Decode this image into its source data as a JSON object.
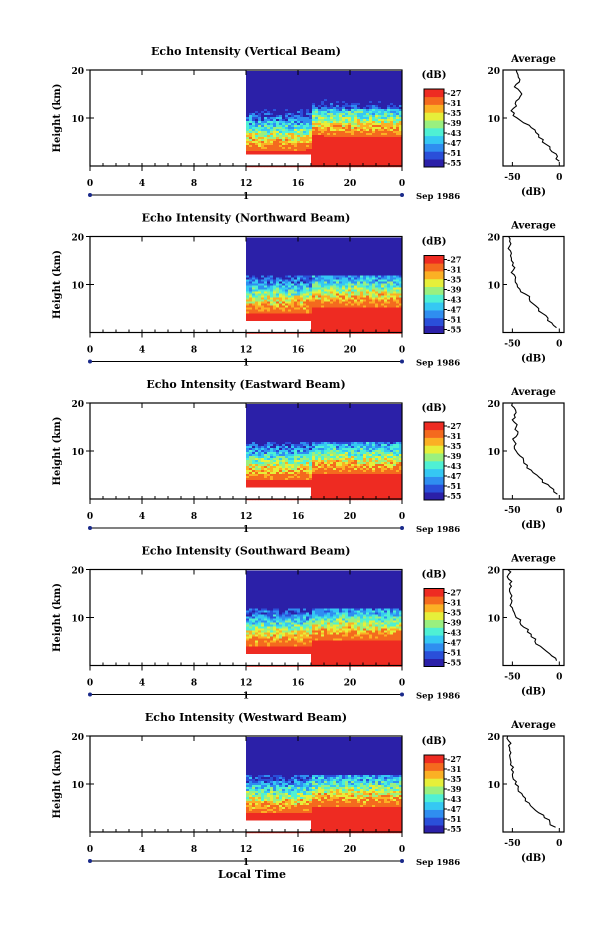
{
  "figure": {
    "xaxis_label": "Local Time",
    "height_label": "Height (km)",
    "colorbar_title": "(dB)",
    "colorbar_ticks": [
      "-27",
      "-31",
      "-35",
      "-39",
      "-43",
      "-47",
      "-51",
      "-55"
    ],
    "colorbar_colors": [
      "#2b20a8",
      "#2a4fd9",
      "#2f8ef0",
      "#35c8f3",
      "#4ff0d4",
      "#9af07f",
      "#e6ef3a",
      "#fbb024",
      "#f46a1e",
      "#ee2b22"
    ],
    "x_ticks": [
      "0",
      "4",
      "8",
      "12",
      "16",
      "20",
      "0"
    ],
    "day_marker": "1",
    "date_label": "Sep 1986",
    "y_ticks": [
      "20",
      "10"
    ],
    "avg_title": "Average",
    "avg_xlabel": "(dB)",
    "avg_x_ticks": [
      "-50",
      "0"
    ],
    "avg_y_ticks": [
      "20",
      "10"
    ]
  },
  "chart_data": [
    {
      "type": "heatmap",
      "title": "Echo Intensity (Vertical Beam)",
      "xlabel": "",
      "ylabel": "Height (km)",
      "xlim": [
        0,
        24
      ],
      "ylim": [
        0,
        20
      ],
      "data_start_hour": 12,
      "colorbar_range_db": [
        -55,
        -27
      ],
      "average_profile": {
        "title": "Average",
        "xlabel": "(dB)",
        "xlim": [
          -60,
          5
        ],
        "ylim": [
          0,
          20
        ],
        "height_km": [
          1,
          2,
          3,
          4,
          5,
          6,
          7,
          8,
          9,
          10,
          11,
          12,
          13,
          14,
          15,
          16,
          17,
          18,
          19,
          20
        ],
        "db": [
          0,
          -2,
          -8,
          -10,
          -18,
          -22,
          -25,
          -30,
          -38,
          -45,
          -48,
          -49,
          -47,
          -43,
          -40,
          -44,
          -46,
          -42,
          -44,
          -46
        ]
      }
    },
    {
      "type": "heatmap",
      "title": "Echo Intensity (Northward Beam)",
      "xlabel": "",
      "ylabel": "Height (km)",
      "xlim": [
        0,
        24
      ],
      "ylim": [
        0,
        20
      ],
      "data_start_hour": 12,
      "colorbar_range_db": [
        -55,
        -27
      ],
      "average_profile": {
        "title": "Average",
        "xlabel": "(dB)",
        "xlim": [
          -60,
          5
        ],
        "ylim": [
          0,
          20
        ],
        "height_km": [
          1,
          2,
          3,
          4,
          5,
          6,
          7,
          8,
          9,
          10,
          11,
          12,
          13,
          14,
          15,
          16,
          17,
          18,
          19,
          20
        ],
        "db": [
          -3,
          -8,
          -12,
          -18,
          -22,
          -28,
          -32,
          -36,
          -42,
          -45,
          -47,
          -48,
          -49,
          -50,
          -51,
          -52,
          -52,
          -53,
          -53,
          -54
        ]
      }
    },
    {
      "type": "heatmap",
      "title": "Echo Intensity (Eastward Beam)",
      "xlabel": "",
      "ylabel": "Height (km)",
      "xlim": [
        0,
        24
      ],
      "ylim": [
        0,
        20
      ],
      "data_start_hour": 12,
      "colorbar_range_db": [
        -55,
        -27
      ],
      "average_profile": {
        "title": "Average",
        "xlabel": "(dB)",
        "xlim": [
          -60,
          5
        ],
        "ylim": [
          0,
          20
        ],
        "height_km": [
          1,
          2,
          3,
          4,
          5,
          6,
          7,
          8,
          9,
          10,
          11,
          12,
          13,
          14,
          15,
          16,
          17,
          18,
          19,
          20
        ],
        "db": [
          -2,
          -6,
          -12,
          -18,
          -24,
          -30,
          -34,
          -38,
          -42,
          -46,
          -48,
          -48,
          -46,
          -44,
          -46,
          -48,
          -47,
          -46,
          -48,
          -50
        ]
      }
    },
    {
      "type": "heatmap",
      "title": "Echo Intensity (Southward Beam)",
      "xlabel": "",
      "ylabel": "Height (km)",
      "xlim": [
        0,
        24
      ],
      "ylim": [
        0,
        20
      ],
      "data_start_hour": 12,
      "colorbar_range_db": [
        -55,
        -27
      ],
      "average_profile": {
        "title": "Average",
        "xlabel": "(dB)",
        "xlim": [
          -60,
          5
        ],
        "ylim": [
          0,
          20
        ],
        "height_km": [
          1,
          2,
          3,
          4,
          5,
          6,
          7,
          8,
          9,
          10,
          11,
          12,
          13,
          14,
          15,
          16,
          17,
          18,
          19,
          20
        ],
        "db": [
          -3,
          -8,
          -14,
          -20,
          -26,
          -30,
          -34,
          -38,
          -42,
          -46,
          -48,
          -50,
          -51,
          -52,
          -52,
          -53,
          -53,
          -54,
          -54,
          -55
        ]
      }
    },
    {
      "type": "heatmap",
      "title": "Echo Intensity (Westward Beam)",
      "xlabel": "Local Time",
      "ylabel": "Height (km)",
      "xlim": [
        0,
        24
      ],
      "ylim": [
        0,
        20
      ],
      "data_start_hour": 12,
      "colorbar_range_db": [
        -55,
        -27
      ],
      "average_profile": {
        "title": "Average",
        "xlabel": "(dB)",
        "xlim": [
          -60,
          5
        ],
        "ylim": [
          0,
          20
        ],
        "height_km": [
          1,
          2,
          3,
          4,
          5,
          6,
          7,
          8,
          9,
          10,
          11,
          12,
          13,
          14,
          15,
          16,
          17,
          18,
          19,
          20
        ],
        "db": [
          -4,
          -10,
          -16,
          -22,
          -28,
          -32,
          -36,
          -40,
          -44,
          -47,
          -49,
          -50,
          -51,
          -52,
          -52,
          -53,
          -53,
          -54,
          -54,
          -55
        ]
      }
    }
  ]
}
